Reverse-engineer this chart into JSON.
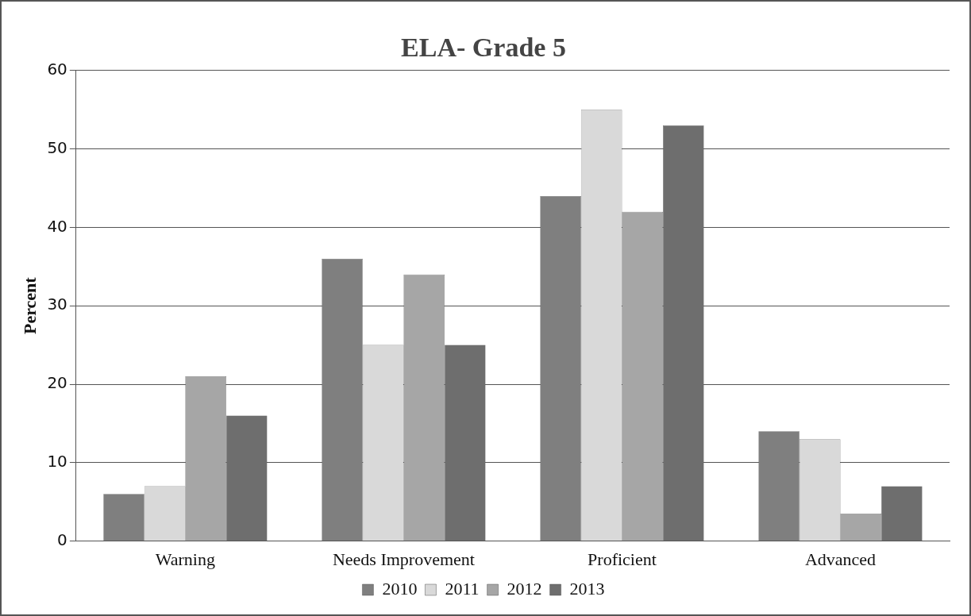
{
  "chart_data": {
    "type": "bar",
    "title": "ELA- Grade 5",
    "ylabel": "Percent",
    "categories": [
      "Warning",
      "Needs Improvement",
      "Proficient",
      "Advanced"
    ],
    "series": [
      {
        "name": "2010",
        "color": "#7f7f7f",
        "values": [
          6,
          36,
          44,
          14
        ]
      },
      {
        "name": "2011",
        "color": "#d9d9d9",
        "values": [
          7,
          25,
          55,
          13
        ]
      },
      {
        "name": "2012",
        "color": "#a6a6a6",
        "values": [
          21,
          34,
          42,
          3.5
        ]
      },
      {
        "name": "2013",
        "color": "#6e6e6e",
        "values": [
          16,
          25,
          53,
          7
        ]
      }
    ],
    "ylim": [
      0,
      60
    ],
    "yticks": [
      0,
      10,
      20,
      30,
      40,
      50,
      60
    ],
    "grid": "y",
    "legend": "bottom"
  }
}
